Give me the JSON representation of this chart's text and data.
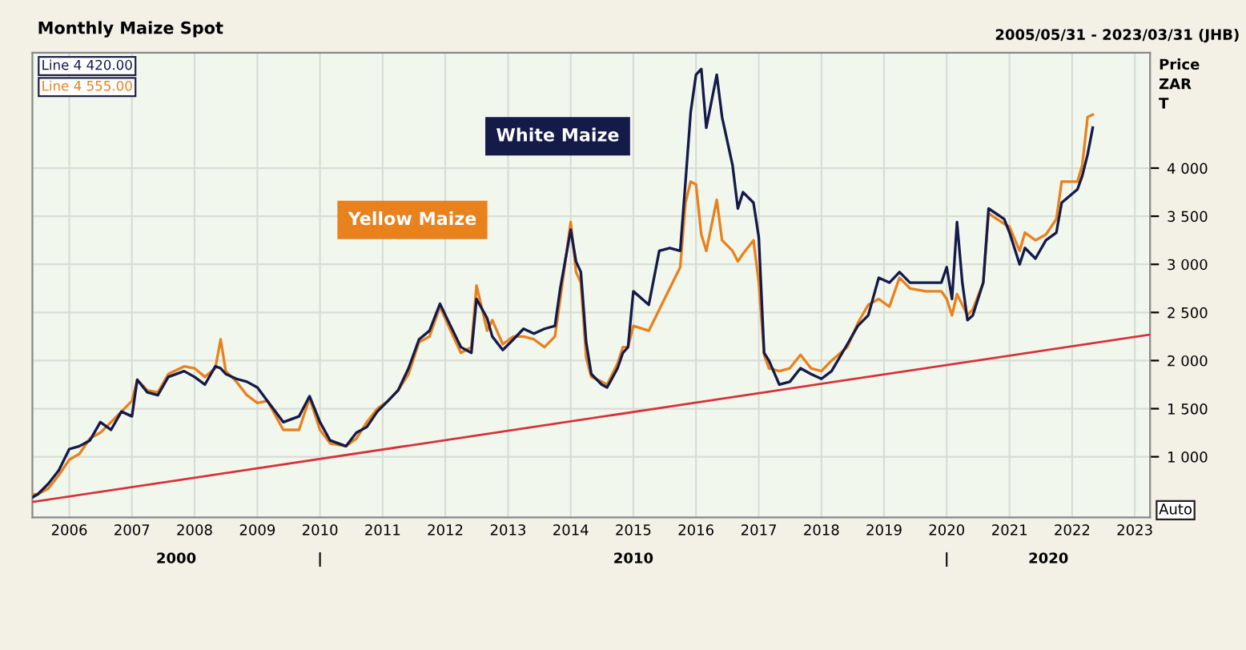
{
  "chart_data": {
    "type": "line",
    "title": "Monthly Maize Spot",
    "subtitle": "2005/05/31 - 2023/03/31 (JHB)",
    "ylabel": "Price\nZAR\nT",
    "annotations": [
      "Line 4 420.00",
      "Line 4 555.00",
      "Auto",
      "2000",
      "|",
      "2010",
      "|",
      "2020"
    ],
    "series": [
      {
        "name": "White Maize",
        "color": "#141a4a",
        "x": [
          "2005-06",
          "2005-07",
          "2005-09",
          "2005-11",
          "2006-01",
          "2006-03",
          "2006-05",
          "2006-07",
          "2006-09",
          "2006-11",
          "2007-01",
          "2007-02",
          "2007-04",
          "2007-06",
          "2007-08",
          "2007-11",
          "2008-01",
          "2008-03",
          "2008-05",
          "2008-06",
          "2008-07",
          "2008-09",
          "2008-11",
          "2009-01",
          "2009-03",
          "2009-06",
          "2009-09",
          "2009-11",
          "2010-01",
          "2010-03",
          "2010-06",
          "2010-08",
          "2010-10",
          "2010-12",
          "2011-02",
          "2011-04",
          "2011-06",
          "2011-08",
          "2011-10",
          "2011-12",
          "2012-02",
          "2012-04",
          "2012-06",
          "2012-07",
          "2012-09",
          "2012-10",
          "2012-12",
          "2013-02",
          "2013-04",
          "2013-06",
          "2013-08",
          "2013-10",
          "2013-11",
          "2014-01",
          "2014-02",
          "2014-03",
          "2014-04",
          "2014-05",
          "2014-07",
          "2014-08",
          "2014-10",
          "2014-11",
          "2014-12",
          "2015-01",
          "2015-04",
          "2015-06",
          "2015-08",
          "2015-10",
          "2015-11",
          "2015-12",
          "2016-01",
          "2016-02",
          "2016-03",
          "2016-05",
          "2016-06",
          "2016-08",
          "2016-09",
          "2016-10",
          "2016-12",
          "2017-01",
          "2017-02",
          "2017-03",
          "2017-05",
          "2017-07",
          "2017-09",
          "2017-11",
          "2018-01",
          "2018-03",
          "2018-06",
          "2018-08",
          "2018-10",
          "2018-12",
          "2019-02",
          "2019-04",
          "2019-06",
          "2019-09",
          "2019-12",
          "2020-01",
          "2020-02",
          "2020-03",
          "2020-04",
          "2020-05",
          "2020-06",
          "2020-08",
          "2020-09",
          "2020-12",
          "2021-01",
          "2021-03",
          "2021-04",
          "2021-06",
          "2021-08",
          "2021-10",
          "2021-11",
          "2022-02",
          "2022-03",
          "2022-04",
          "2022-05"
        ],
        "values": [
          580,
          610,
          720,
          860,
          1080,
          1110,
          1170,
          1360,
          1280,
          1470,
          1420,
          1800,
          1670,
          1640,
          1830,
          1890,
          1830,
          1750,
          1940,
          1920,
          1860,
          1810,
          1780,
          1720,
          1580,
          1360,
          1420,
          1630,
          1360,
          1170,
          1110,
          1250,
          1310,
          1470,
          1580,
          1690,
          1920,
          2220,
          2310,
          2590,
          2360,
          2140,
          2080,
          2640,
          2440,
          2250,
          2110,
          2220,
          2330,
          2280,
          2330,
          2360,
          2750,
          3360,
          3030,
          2920,
          2190,
          1860,
          1750,
          1720,
          1920,
          2080,
          2140,
          2720,
          2580,
          3140,
          3170,
          3140,
          3860,
          4580,
          4970,
          5030,
          4420,
          4970,
          4530,
          4030,
          3580,
          3750,
          3640,
          3280,
          2080,
          2000,
          1750,
          1780,
          1920,
          1860,
          1810,
          1890,
          2170,
          2360,
          2470,
          2860,
          2810,
          2920,
          2810,
          2810,
          2810,
          2970,
          2640,
          3440,
          2810,
          2420,
          2470,
          2810,
          3580,
          3470,
          3330,
          3000,
          3170,
          3060,
          3250,
          3330,
          3640,
          3780,
          3920,
          4140,
          4420
        ]
      },
      {
        "name": "Yellow Maize",
        "color": "#e8821e",
        "x": [
          "2005-06",
          "2005-07",
          "2005-09",
          "2005-11",
          "2006-01",
          "2006-03",
          "2006-05",
          "2006-07",
          "2006-09",
          "2006-11",
          "2007-01",
          "2007-02",
          "2007-04",
          "2007-06",
          "2007-08",
          "2007-11",
          "2008-01",
          "2008-03",
          "2008-05",
          "2008-06",
          "2008-07",
          "2008-09",
          "2008-11",
          "2009-01",
          "2009-03",
          "2009-06",
          "2009-09",
          "2009-11",
          "2010-01",
          "2010-03",
          "2010-06",
          "2010-08",
          "2010-10",
          "2010-12",
          "2011-02",
          "2011-04",
          "2011-06",
          "2011-08",
          "2011-10",
          "2011-12",
          "2012-02",
          "2012-04",
          "2012-06",
          "2012-07",
          "2012-09",
          "2012-10",
          "2012-12",
          "2013-02",
          "2013-04",
          "2013-06",
          "2013-08",
          "2013-10",
          "2013-11",
          "2014-01",
          "2014-02",
          "2014-03",
          "2014-04",
          "2014-05",
          "2014-07",
          "2014-08",
          "2014-10",
          "2014-11",
          "2014-12",
          "2015-01",
          "2015-04",
          "2015-06",
          "2015-08",
          "2015-10",
          "2015-11",
          "2015-12",
          "2016-01",
          "2016-02",
          "2016-03",
          "2016-05",
          "2016-06",
          "2016-08",
          "2016-09",
          "2016-10",
          "2016-12",
          "2017-01",
          "2017-02",
          "2017-03",
          "2017-05",
          "2017-07",
          "2017-09",
          "2017-11",
          "2018-01",
          "2018-03",
          "2018-06",
          "2018-08",
          "2018-10",
          "2018-12",
          "2019-02",
          "2019-04",
          "2019-06",
          "2019-09",
          "2019-12",
          "2020-01",
          "2020-02",
          "2020-03",
          "2020-04",
          "2020-05",
          "2020-06",
          "2020-08",
          "2020-09",
          "2020-12",
          "2021-01",
          "2021-03",
          "2021-04",
          "2021-06",
          "2021-08",
          "2021-10",
          "2021-11",
          "2022-02",
          "2022-03",
          "2022-04",
          "2022-05"
        ],
        "values": [
          610,
          610,
          670,
          810,
          970,
          1030,
          1190,
          1250,
          1360,
          1470,
          1580,
          1800,
          1690,
          1670,
          1860,
          1940,
          1920,
          1830,
          1920,
          2220,
          1890,
          1780,
          1640,
          1560,
          1580,
          1280,
          1280,
          1610,
          1280,
          1140,
          1110,
          1190,
          1360,
          1500,
          1580,
          1690,
          1860,
          2190,
          2250,
          2560,
          2310,
          2080,
          2140,
          2780,
          2310,
          2420,
          2170,
          2250,
          2250,
          2220,
          2140,
          2250,
          2640,
          3440,
          2920,
          2810,
          2030,
          1830,
          1780,
          1750,
          1970,
          2140,
          2140,
          2360,
          2310,
          2530,
          2750,
          2970,
          3640,
          3860,
          3830,
          3310,
          3140,
          3670,
          3250,
          3140,
          3030,
          3110,
          3250,
          2810,
          2060,
          1920,
          1890,
          1920,
          2060,
          1920,
          1890,
          2000,
          2140,
          2390,
          2580,
          2640,
          2560,
          2860,
          2750,
          2720,
          2720,
          2640,
          2470,
          2690,
          2580,
          2470,
          2530,
          2810,
          3530,
          3420,
          3390,
          3140,
          3330,
          3250,
          3310,
          3470,
          3860,
          3860,
          4030,
          4530,
          4555
        ]
      },
      {
        "type": "line",
        "color": "#d9303a",
        "x": [
          "2005-05-31",
          "2023-03-31"
        ],
        "values": [
          530,
          2270
        ]
      }
    ],
    "xlim": [
      "2005-05-31",
      "2023-03-31"
    ],
    "xticks": [
      {
        "value": "2006",
        "label": "2006"
      },
      {
        "value": "2007",
        "label": "2007"
      },
      {
        "value": "2008",
        "label": "2008"
      },
      {
        "value": "2009",
        "label": "2009"
      },
      {
        "value": "2010",
        "label": "2010"
      },
      {
        "value": "2011",
        "label": "2011"
      },
      {
        "value": "2012",
        "label": "2012"
      },
      {
        "value": "2013",
        "label": "2013"
      },
      {
        "value": "2014",
        "label": "2014"
      },
      {
        "value": "2015",
        "label": "2015"
      },
      {
        "value": "2016",
        "label": "2016"
      },
      {
        "value": "2017",
        "label": "2017"
      },
      {
        "value": "2018",
        "label": "2018"
      },
      {
        "value": "2019",
        "label": "2019"
      },
      {
        "value": "2020",
        "label": "2020"
      },
      {
        "value": "2021",
        "label": "2021"
      },
      {
        "value": "2022",
        "label": "2022"
      },
      {
        "value": "2023",
        "label": "2023"
      }
    ],
    "ylim": [
      370,
      5200
    ],
    "yticks": [
      {
        "value": 1000,
        "label": "1 000"
      },
      {
        "value": 1500,
        "label": "1 500"
      },
      {
        "value": 2000,
        "label": "2 000"
      },
      {
        "value": 2500,
        "label": "2 500"
      },
      {
        "value": 3000,
        "label": "3 000"
      },
      {
        "value": 3500,
        "label": "3 500"
      },
      {
        "value": 4000,
        "label": "4 000"
      }
    ],
    "grid": true,
    "legend": false
  }
}
